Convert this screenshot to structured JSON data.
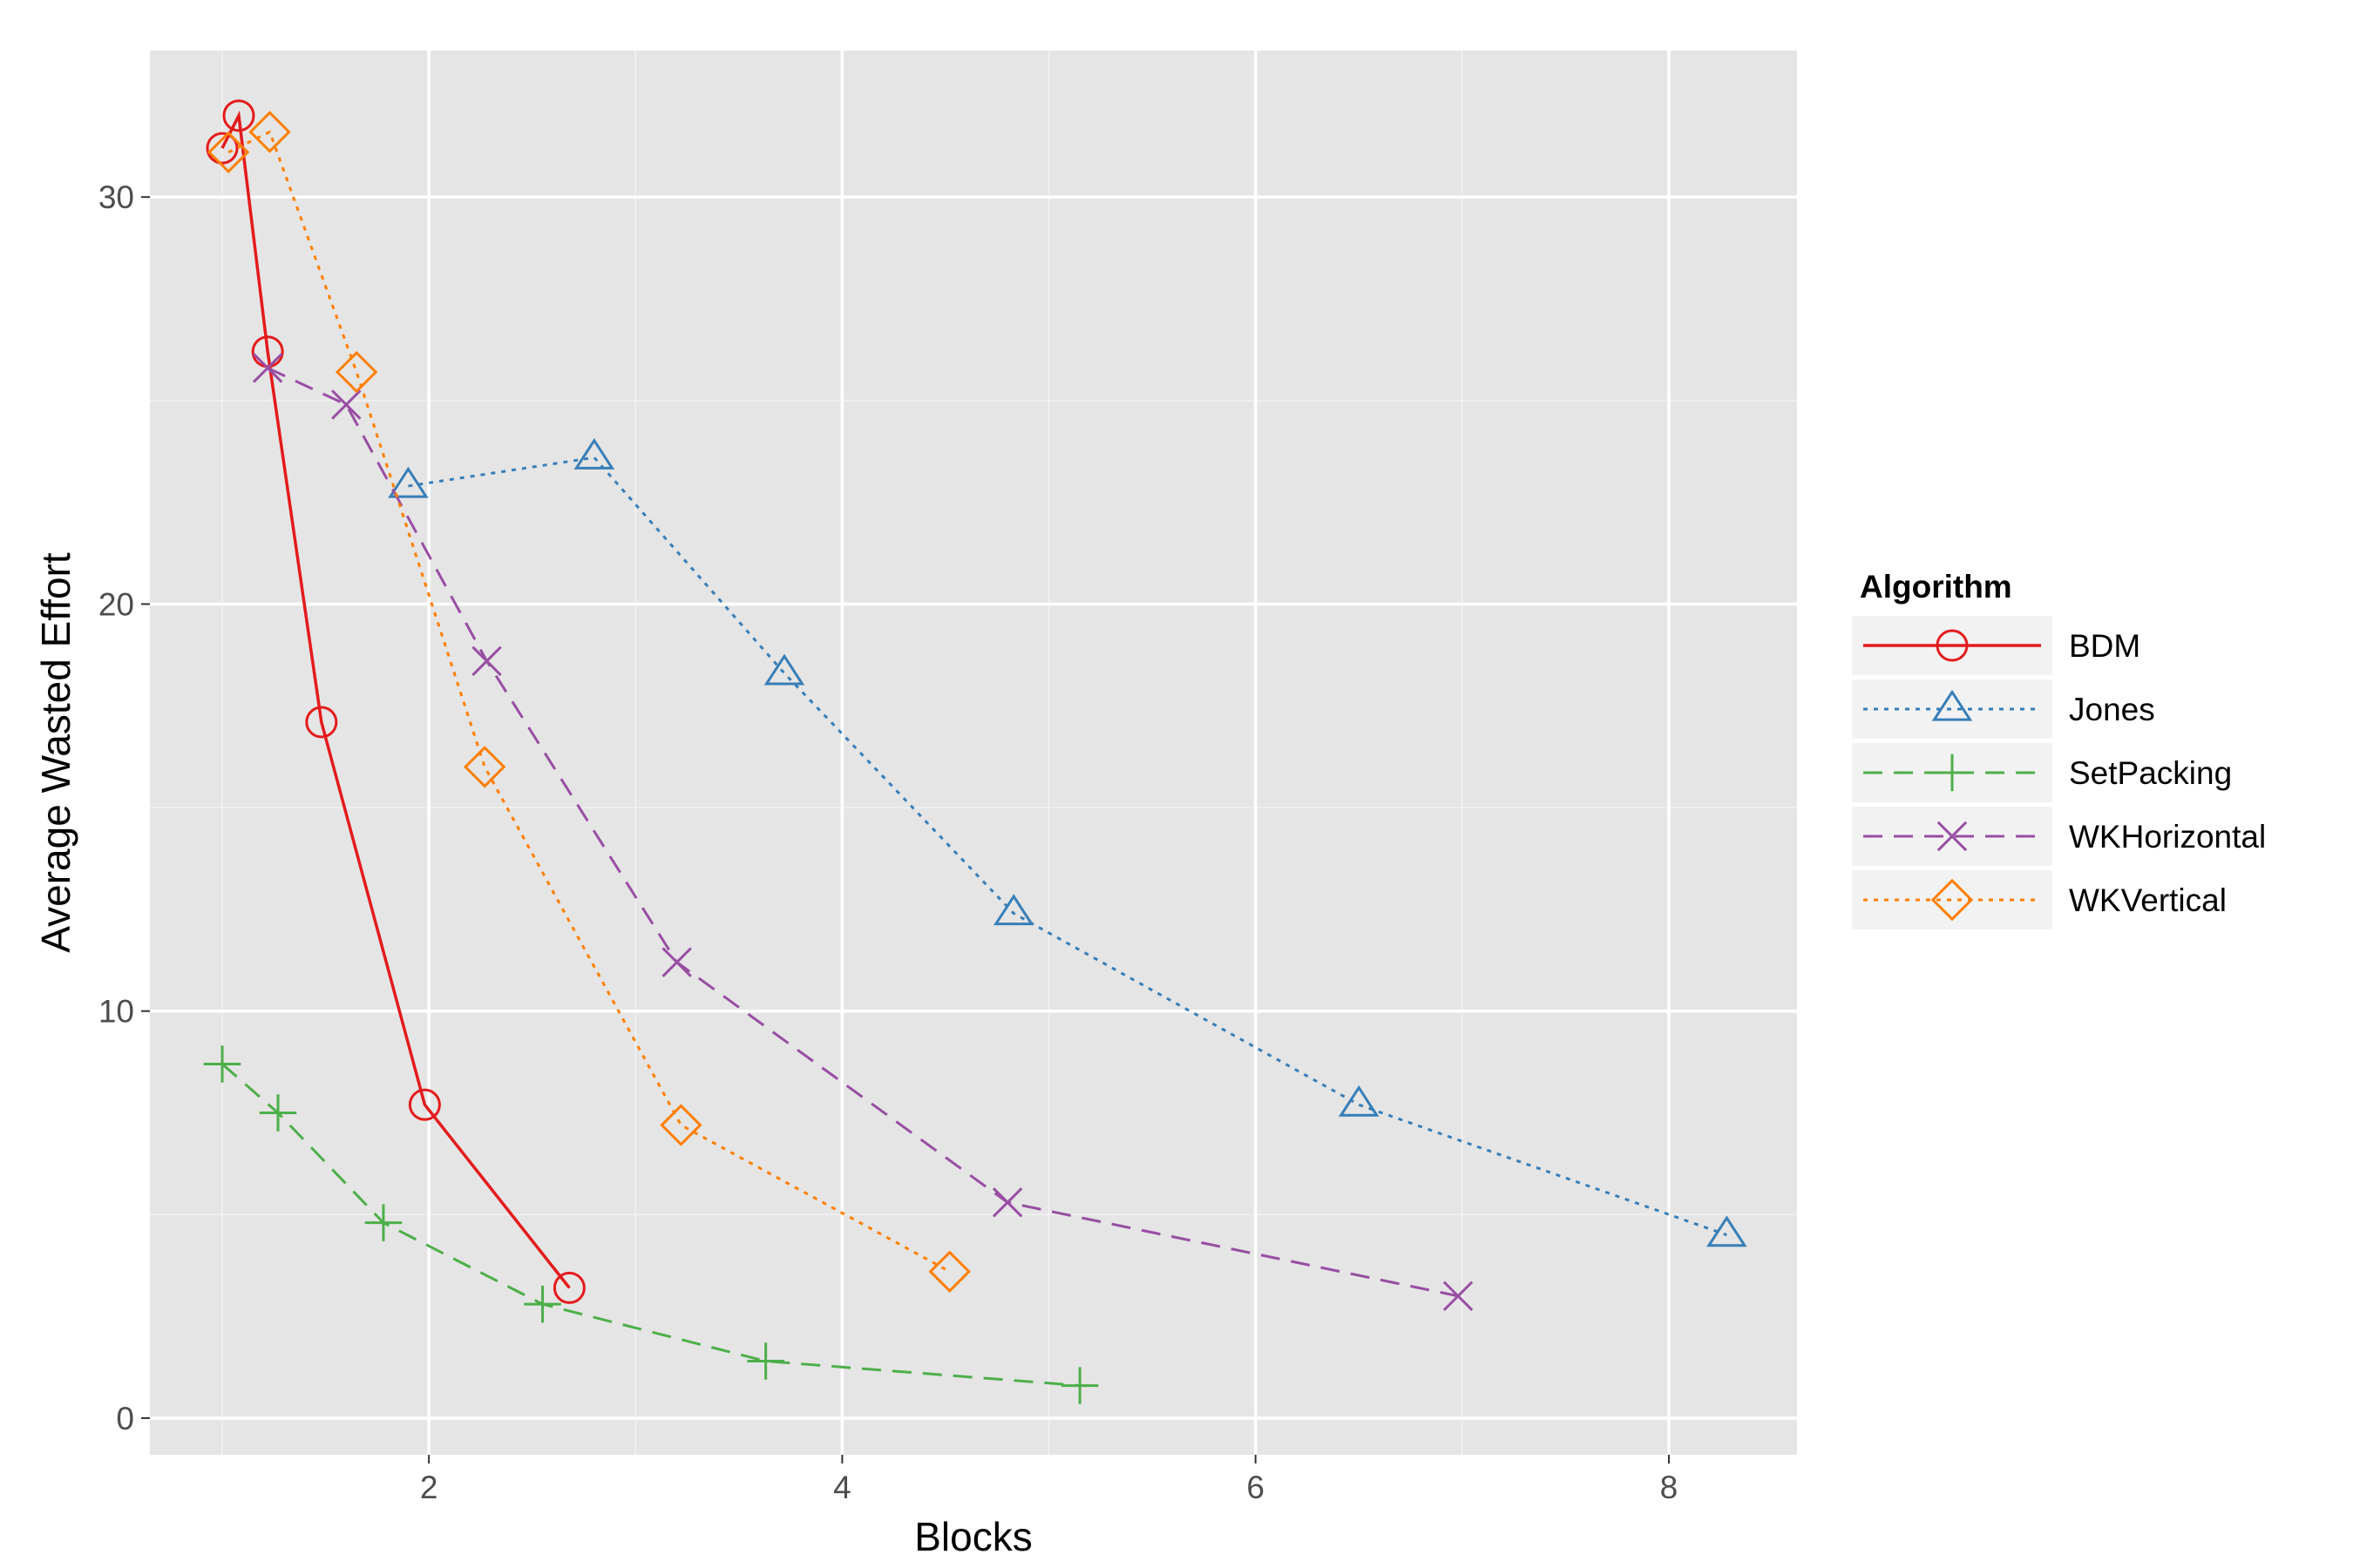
{
  "chart_data": {
    "type": "line",
    "title": "",
    "xlabel": "Blocks",
    "ylabel": "Average Wasted Effort",
    "xlim": [
      0.65,
      8.62
    ],
    "ylim": [
      -0.9,
      33.6
    ],
    "x_ticks": [
      2,
      4,
      6,
      8
    ],
    "y_ticks": [
      0,
      10,
      20,
      30
    ],
    "x_tick_labels": [
      "2",
      "4",
      "6",
      "8"
    ],
    "y_tick_labels": [
      "0",
      "10",
      "20",
      "30"
    ],
    "grid": true,
    "background": "#e5e5e5",
    "legend": {
      "title": "Algorithm",
      "position": "right"
    },
    "series": [
      {
        "name": "BDM",
        "color": "#e41a1c",
        "line": "solid",
        "marker": "circle",
        "x": [
          1.0,
          1.08,
          1.22,
          1.48,
          1.98,
          2.68
        ],
        "y": [
          31.2,
          32.0,
          26.2,
          17.1,
          7.7,
          3.2
        ]
      },
      {
        "name": "Jones",
        "color": "#377eb8",
        "line": "dotted",
        "marker": "triangle",
        "x": [
          1.9,
          2.8,
          3.72,
          4.83,
          6.5,
          8.28
        ],
        "y": [
          22.9,
          23.6,
          18.3,
          12.4,
          7.7,
          4.5
        ]
      },
      {
        "name": "SetPacking",
        "color": "#4daf4a",
        "line": "dashed",
        "marker": "plus",
        "x": [
          1.0,
          1.27,
          1.78,
          2.55,
          3.63,
          5.15
        ],
        "y": [
          8.7,
          7.5,
          4.8,
          2.8,
          1.4,
          0.8
        ]
      },
      {
        "name": "WKHorizontal",
        "color": "#984ea3",
        "line": "dashed",
        "marker": "x",
        "x": [
          1.22,
          1.6,
          2.28,
          3.2,
          4.8,
          6.98
        ],
        "y": [
          25.8,
          24.9,
          18.6,
          11.2,
          5.3,
          3.0
        ]
      },
      {
        "name": "WKVertical",
        "color": "#ff7f00",
        "line": "dotted",
        "marker": "diamond",
        "x": [
          1.03,
          1.23,
          1.65,
          2.27,
          3.22,
          4.52
        ],
        "y": [
          31.1,
          31.6,
          25.7,
          16.0,
          7.2,
          3.6
        ]
      }
    ]
  }
}
